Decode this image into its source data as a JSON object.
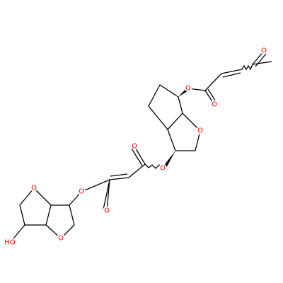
{
  "atoms": [
    {
      "label": "O"
    },
    {
      "label": "O"
    },
    {
      "label": "O"
    },
    {
      "label": "O"
    },
    {
      "label": "O"
    },
    {
      "label": "O"
    },
    {
      "label": "O"
    },
    {
      "label": "O"
    },
    {
      "label": "O"
    },
    {
      "label": "O"
    },
    {
      "label": "HO"
    }
  ]
}
